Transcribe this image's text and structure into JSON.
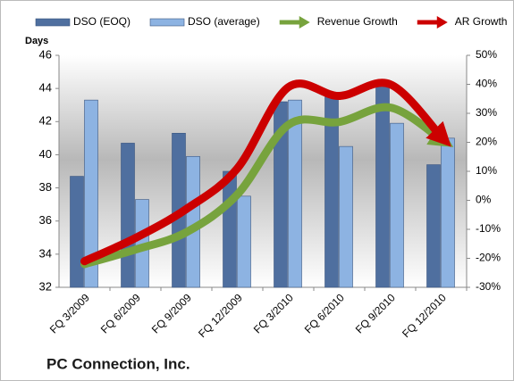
{
  "chart_data": {
    "type": "bar-line",
    "title": "PC Connection, Inc.",
    "y_label": "Days",
    "categories": [
      "FQ 3/2009",
      "FQ 6/2009",
      "FQ 9/2009",
      "FQ 12/2009",
      "FQ 3/2010",
      "FQ 6/2010",
      "FQ 9/2010",
      "FQ 12/2010"
    ],
    "series": [
      {
        "name": "DSO (EOQ)",
        "color": "#4f6f9f",
        "values": [
          38.7,
          40.7,
          41.3,
          39.0,
          43.2,
          43.5,
          44.3,
          39.4
        ]
      },
      {
        "name": "DSO (average)",
        "color": "#8db3e2",
        "values": [
          43.3,
          37.3,
          39.9,
          37.5,
          43.3,
          40.5,
          41.9,
          41.0
        ]
      },
      {
        "name": "Revenue Growth",
        "color": "#77a33d",
        "axis": "y2",
        "values": [
          -22,
          -17,
          -11,
          2,
          26,
          27,
          32,
          21
        ]
      },
      {
        "name": "AR Growth",
        "color": "#cc0000",
        "axis": "y2",
        "values": [
          -21,
          -13,
          -3,
          11,
          39,
          36,
          40,
          22
        ]
      }
    ],
    "ylim": [
      32,
      46
    ],
    "yticks": [
      32,
      34,
      36,
      38,
      40,
      42,
      44,
      46
    ],
    "y2lim": [
      -30,
      50
    ],
    "y2ticks": [
      {
        "value": -30,
        "label": "-30%"
      },
      {
        "value": -20,
        "label": "-20%"
      },
      {
        "value": -10,
        "label": "-10%"
      },
      {
        "value": 0,
        "label": "0%"
      },
      {
        "value": 10,
        "label": "10%"
      },
      {
        "value": 20,
        "label": "20%"
      },
      {
        "value": 30,
        "label": "30%"
      },
      {
        "value": 40,
        "label": "40%"
      },
      {
        "value": 50,
        "label": "50%"
      }
    ],
    "grid": true
  }
}
